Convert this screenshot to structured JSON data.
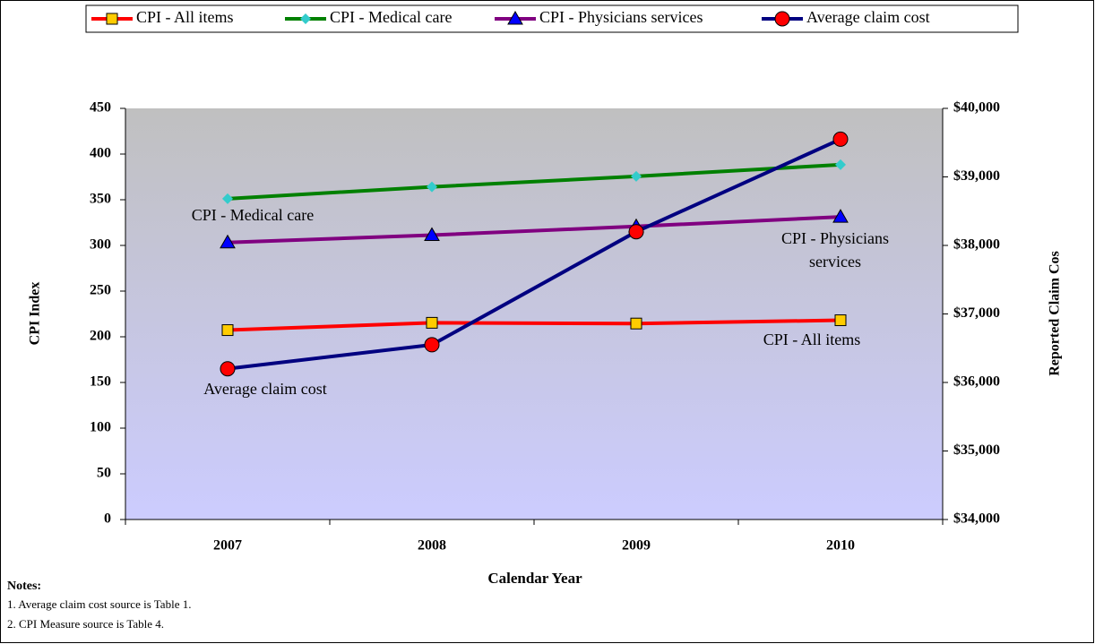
{
  "chart_data": {
    "type": "line",
    "x_label": "Calendar Year",
    "y_label": "CPI Index",
    "y2_label": "Reported Claim Cos",
    "categories": [
      "2007",
      "2008",
      "2009",
      "2010"
    ],
    "ylim": [
      0,
      450
    ],
    "yticks": [
      0,
      50,
      100,
      150,
      200,
      250,
      300,
      350,
      400,
      450
    ],
    "y2lim": [
      34000,
      40000
    ],
    "y2ticks": [
      {
        "value": 34000,
        "label": "$34,000"
      },
      {
        "value": 35000,
        "label": "$35,000"
      },
      {
        "value": 36000,
        "label": "$36,000"
      },
      {
        "value": 37000,
        "label": "$37,000"
      },
      {
        "value": 38000,
        "label": "$38,000"
      },
      {
        "value": 39000,
        "label": "$39,000"
      },
      {
        "value": 40000,
        "label": "$40,000"
      }
    ],
    "legend": "top",
    "series": [
      {
        "name": "CPI - All items",
        "color": "#ff0000",
        "marker": "square",
        "marker_color": "#ffcc00",
        "values": [
          207.3,
          215.3,
          214.5,
          218.1
        ]
      },
      {
        "name": "CPI - Medical care",
        "color": "#008000",
        "marker": "diamond",
        "marker_color": "#33cccc",
        "values": [
          351.1,
          364.1,
          375.6,
          388.4
        ]
      },
      {
        "name": "CPI - Physicians services",
        "color": "#800080",
        "marker": "triangle",
        "marker_color": "#0000ff",
        "values": [
          303.2,
          311.3,
          320.8,
          331.3
        ]
      },
      {
        "name": "Average claim cost",
        "color": "#000080",
        "marker": "circle",
        "marker_color": "#ff0000",
        "axis": "y2",
        "values": [
          36200,
          36550,
          38200,
          39550
        ]
      }
    ],
    "annotations": [
      {
        "lines": [
          "CPI - All items"
        ]
      },
      {
        "lines": [
          "CPI - Medical care"
        ]
      },
      {
        "lines": [
          "CPI - Physicians",
          "services"
        ]
      },
      {
        "lines": [
          "Average claim cost"
        ]
      }
    ],
    "notes": {
      "title": "Notes:",
      "items": [
        "1. Average claim cost source is Table 1.",
        "2. CPI Measure source is Table 4."
      ]
    }
  }
}
